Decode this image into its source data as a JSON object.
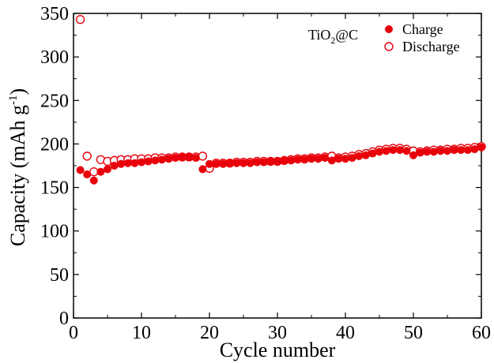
{
  "chart_data": {
    "type": "scatter",
    "title": "",
    "xlabel": "Cycle number",
    "ylabel": "Capacity (mAh g-1)",
    "ylabel_parts": {
      "main": "Capacity (mAh g",
      "sup": "-1",
      "close": ")"
    },
    "annotation": {
      "text": "TiO2@C",
      "main": "TiO",
      "sub": "2",
      "rest": "@C"
    },
    "xlim": [
      0,
      60
    ],
    "ylim": [
      0,
      350
    ],
    "x_ticks": [
      0,
      10,
      20,
      30,
      40,
      50,
      60
    ],
    "y_ticks": [
      0,
      50,
      100,
      150,
      200,
      250,
      300,
      350
    ],
    "legend_position": "top-right",
    "grid": false,
    "series": [
      {
        "name": "Charge",
        "marker": "filled-circle",
        "color": "#e8000b",
        "x": [
          1,
          2,
          3,
          4,
          5,
          6,
          7,
          8,
          9,
          10,
          11,
          12,
          13,
          14,
          15,
          16,
          17,
          18,
          19,
          20,
          21,
          22,
          23,
          24,
          25,
          26,
          27,
          28,
          29,
          30,
          31,
          32,
          33,
          34,
          35,
          36,
          37,
          38,
          39,
          40,
          41,
          42,
          43,
          44,
          45,
          46,
          47,
          48,
          49,
          50,
          51,
          52,
          53,
          54,
          55,
          56,
          57,
          58,
          59,
          60
        ],
        "y": [
          170,
          165,
          158,
          168,
          171,
          175,
          177,
          178,
          178,
          179,
          180,
          181,
          182,
          183,
          184,
          185,
          185,
          184,
          171,
          177,
          177,
          177,
          178,
          178,
          178,
          178,
          179,
          179,
          180,
          180,
          181,
          181,
          182,
          182,
          183,
          183,
          184,
          181,
          183,
          183,
          184,
          186,
          187,
          189,
          191,
          192,
          193,
          193,
          192,
          187,
          190,
          191,
          191,
          192,
          192,
          193,
          193,
          193,
          194,
          196
        ]
      },
      {
        "name": "Discharge",
        "marker": "open-circle",
        "color": "#e8000b",
        "x": [
          1,
          2,
          3,
          4,
          5,
          6,
          7,
          8,
          9,
          10,
          11,
          12,
          13,
          14,
          15,
          16,
          17,
          18,
          19,
          20,
          21,
          22,
          23,
          24,
          25,
          26,
          27,
          28,
          29,
          30,
          31,
          32,
          33,
          34,
          35,
          36,
          37,
          38,
          39,
          40,
          41,
          42,
          43,
          44,
          45,
          46,
          47,
          48,
          49,
          50,
          51,
          52,
          53,
          54,
          55,
          56,
          57,
          58,
          59,
          60
        ],
        "y": [
          343,
          186,
          168,
          182,
          180,
          181,
          182,
          182,
          183,
          183,
          183,
          184,
          184,
          184,
          185,
          185,
          185,
          185,
          186,
          172,
          178,
          178,
          178,
          179,
          179,
          179,
          180,
          180,
          180,
          180,
          181,
          182,
          183,
          183,
          184,
          184,
          185,
          186,
          184,
          185,
          186,
          188,
          189,
          191,
          193,
          194,
          195,
          195,
          194,
          192,
          191,
          192,
          193,
          193,
          194,
          194,
          195,
          195,
          196,
          197
        ]
      }
    ]
  }
}
